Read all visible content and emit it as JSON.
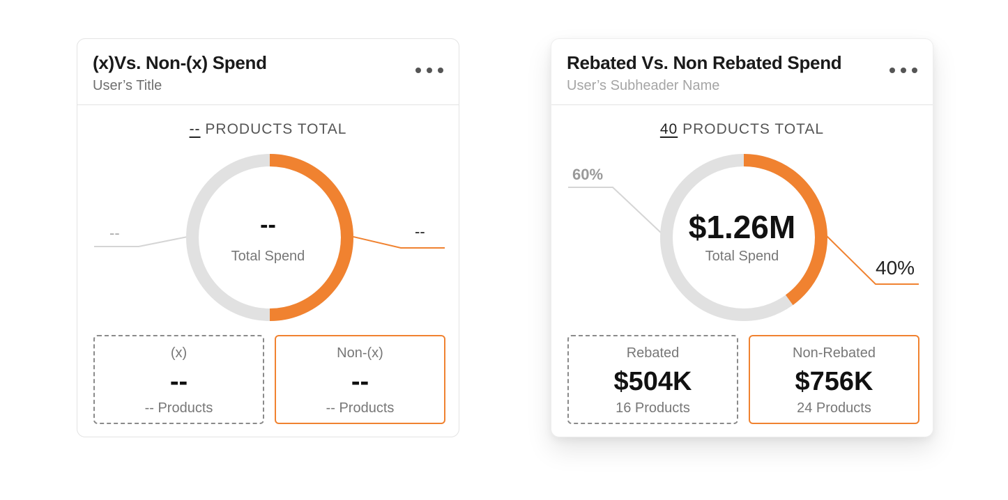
{
  "colors": {
    "accent": "#f08230",
    "track": "#e1e1e1",
    "text": "#111111",
    "muted": "#777777"
  },
  "cards": [
    {
      "title": "(x)Vs. Non-(x) Spend",
      "subtitle": "User’s Title",
      "menu_icon": "more-horizontal-icon",
      "products_total": {
        "count": "--",
        "label": "PRODUCTS TOTAL"
      },
      "donut": {
        "value": "--",
        "label": "Total Spend",
        "accent_fraction": 0.5
      },
      "left_callout": "--",
      "right_callout": "--",
      "boxes": [
        {
          "name": "(x)",
          "value": "--",
          "count": "-- Products"
        },
        {
          "name": "Non-(x)",
          "value": "--",
          "count": "-- Products"
        }
      ]
    },
    {
      "title": "Rebated Vs. Non Rebated Spend",
      "subtitle": "User’s Subheader Name",
      "menu_icon": "more-horizontal-icon",
      "products_total": {
        "count": "40",
        "label": "PRODUCTS TOTAL"
      },
      "donut": {
        "value": "$1.26M",
        "label": "Total Spend",
        "accent_fraction": 0.4
      },
      "left_callout": "60%",
      "right_callout": "40%",
      "boxes": [
        {
          "name": "Rebated",
          "value": "$504K",
          "count": "16 Products"
        },
        {
          "name": "Non-Rebated",
          "value": "$756K",
          "count": "24 Products"
        }
      ]
    }
  ]
}
